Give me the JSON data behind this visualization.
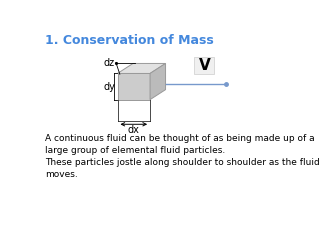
{
  "title": "1. Conservation of Mass",
  "title_color": "#4488DD",
  "title_fontsize": 9,
  "bg_color": "#ffffff",
  "label_dz": "dz",
  "label_dy": "dy",
  "label_dx": "dx",
  "label_V": "V",
  "text1": "A continuous fluid can be thought of as being made up of a\nlarge group of elemental fluid particles.",
  "text2": "These particles jostle along shoulder to shoulder as the fluid\nmoves.",
  "text_fontsize": 6.5,
  "line_color": "#7799CC",
  "edge_color": "#999999",
  "face_front": "#cccccc",
  "face_top": "#e2e2e2",
  "face_right": "#bbbbbb"
}
